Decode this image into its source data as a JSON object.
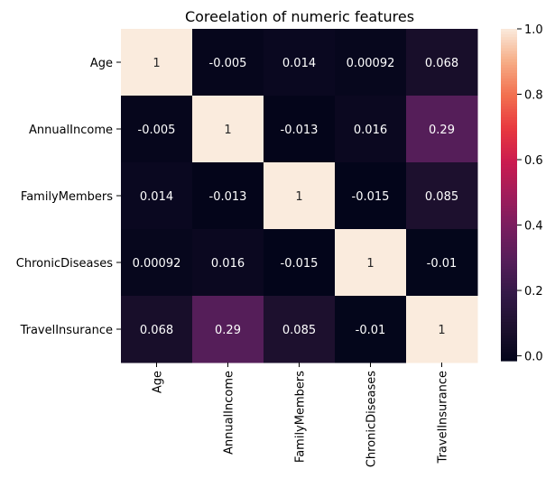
{
  "chart_data": {
    "type": "heatmap",
    "title": "Coreelation of numeric features",
    "xlabel": "",
    "ylabel": "",
    "x_categories": [
      "Age",
      "AnnualIncome",
      "FamilyMembers",
      "ChronicDiseases",
      "TravelInsurance"
    ],
    "y_categories": [
      "Age",
      "AnnualIncome",
      "FamilyMembers",
      "ChronicDiseases",
      "TravelInsurance"
    ],
    "values": [
      [
        1,
        -0.005,
        0.014,
        0.00092,
        0.068
      ],
      [
        -0.005,
        1,
        -0.013,
        0.016,
        0.29
      ],
      [
        0.014,
        -0.013,
        1,
        -0.015,
        0.085
      ],
      [
        0.00092,
        0.016,
        -0.015,
        1,
        -0.01
      ],
      [
        0.068,
        0.29,
        0.085,
        -0.01,
        1
      ]
    ],
    "cell_labels": [
      [
        "1",
        "-0.005",
        "0.014",
        "0.00092",
        "0.068"
      ],
      [
        "-0.005",
        "1",
        "-0.013",
        "0.016",
        "0.29"
      ],
      [
        "0.014",
        "-0.013",
        "1",
        "-0.015",
        "0.085"
      ],
      [
        "0.00092",
        "0.016",
        "-0.015",
        "1",
        "-0.01"
      ],
      [
        "0.068",
        "0.29",
        "0.085",
        "-0.01",
        "1"
      ]
    ],
    "colorbar": {
      "range": [
        -0.015,
        1
      ],
      "ticks": [
        0.0,
        0.2,
        0.4,
        0.6,
        0.8,
        1.0
      ],
      "tick_labels": [
        "0.0",
        "0.2",
        "0.4",
        "0.6",
        "0.8",
        "1.0"
      ],
      "colormap": "rocket"
    },
    "annotate": true,
    "grid": false,
    "legend": "colorbar-right"
  }
}
